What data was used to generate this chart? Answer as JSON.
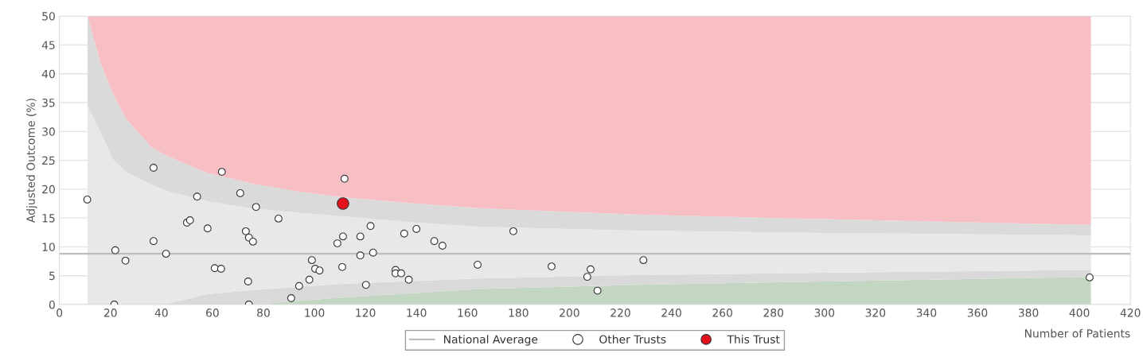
{
  "chart_data": {
    "type": "scatter",
    "xlabel": "Number of Patients",
    "ylabel": "Adjusted Outcome (%)",
    "xlim": [
      0,
      420
    ],
    "ylim": [
      0,
      50
    ],
    "xticks": [
      0,
      20,
      40,
      60,
      80,
      100,
      120,
      140,
      160,
      180,
      200,
      220,
      240,
      260,
      280,
      300,
      320,
      340,
      360,
      380,
      400,
      420
    ],
    "yticks": [
      0,
      5,
      10,
      15,
      20,
      25,
      30,
      35,
      40,
      45,
      50
    ],
    "grid": "y",
    "legend": "bottom",
    "stacked": true,
    "x": [
      11,
      16,
      21,
      26,
      36,
      42,
      58,
      76,
      95,
      111,
      140,
      164,
      226,
      300,
      404.5
    ],
    "series": [
      {
        "type": "area",
        "color": "#c3d6c2",
        "values": [
          0,
          0,
          0,
          0,
          0,
          0,
          0,
          0,
          0.7,
          1.2,
          2.0,
          2.7,
          3.4,
          4.0,
          4.8
        ]
      },
      {
        "type": "area",
        "color": "#d9d9d9",
        "values": [
          0,
          0,
          0,
          0,
          0,
          0.1,
          1.8,
          2.5,
          2.4,
          2.4,
          2.1,
          1.8,
          1.7,
          1.5,
          1.2
        ]
      },
      {
        "type": "area",
        "color": "#e8e8e8",
        "values": [
          34.5,
          30,
          25.2,
          23.0,
          20.8,
          19.6,
          16.1,
          14.1,
          12.8,
          11.7,
          10.1,
          9.0,
          7.7,
          6.9,
          6.0
        ]
      },
      {
        "type": "area",
        "color": "#dadada",
        "values": [
          15.5,
          12,
          11.3,
          9.3,
          6.5,
          6.1,
          4.9,
          4.3,
          3.6,
          3.3,
          3.3,
          3.2,
          2.8,
          2.4,
          1.8
        ]
      },
      {
        "type": "area",
        "color": "#f7bfc3",
        "values": [
          0,
          8,
          13.5,
          17.7,
          22.7,
          24.2,
          27.2,
          29.1,
          30.5,
          31.4,
          32.5,
          33.3,
          34.4,
          35.2,
          36.2
        ]
      },
      {
        "type": "line",
        "name": "National Average",
        "color": "#bdbdbd",
        "x": [
          0,
          420
        ],
        "values": [
          8.8,
          8.8
        ]
      },
      {
        "name": "Other Trusts",
        "color": "#ffffff",
        "marker": "circle",
        "x": [
          10.9,
          21.5,
          21.9,
          25.9,
          36.9,
          36.9,
          41.8,
          50,
          51.2,
          54,
          58.1,
          60.9,
          63.4,
          63.7,
          70.9,
          73.1,
          74.3,
          75.9,
          74,
          74.3,
          77.1,
          85.9,
          90.9,
          94,
          98,
          99,
          100.3,
          102,
          109,
          111.2,
          110.9,
          111.8,
          118,
          118,
          120.2,
          122,
          123,
          131.8,
          131.8,
          134,
          135.2,
          137,
          140,
          147,
          150.2,
          164,
          178,
          193,
          207,
          208.3,
          211,
          229,
          404
        ],
        "values": [
          18.2,
          0,
          9.4,
          7.6,
          23.7,
          11.0,
          8.8,
          14.2,
          14.6,
          18.7,
          13.2,
          6.3,
          6.2,
          23.0,
          19.3,
          12.7,
          11.6,
          10.9,
          4.0,
          0,
          16.9,
          14.9,
          1.1,
          3.2,
          4.3,
          7.7,
          6.2,
          5.9,
          10.6,
          11.8,
          6.5,
          21.8,
          8.5,
          11.8,
          3.4,
          13.6,
          9.0,
          6.0,
          5.4,
          5.4,
          12.3,
          4.3,
          13.1,
          11.0,
          10.2,
          6.9,
          12.7,
          6.6,
          4.8,
          6.1,
          2.4,
          7.7,
          4.7
        ]
      },
      {
        "name": "This Trust",
        "color": "#e3111b",
        "marker": "circle",
        "x": [
          111.2
        ],
        "values": [
          17.5
        ]
      }
    ]
  }
}
